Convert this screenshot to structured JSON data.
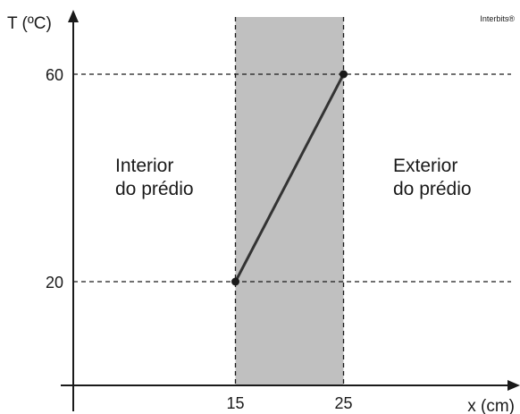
{
  "credit": "Interbits®",
  "chart_data": {
    "type": "line",
    "xlabel": "x (cm)",
    "ylabel": "T (ºC)",
    "x_ticks": [
      "15",
      "25"
    ],
    "y_ticks": [
      "20",
      "60"
    ],
    "xlim": [
      0,
      40
    ],
    "ylim": [
      0,
      70
    ],
    "shaded_region": {
      "x_start": 15,
      "x_end": 25,
      "color": "#c0c0c0"
    },
    "series": [
      {
        "x": [
          15,
          25
        ],
        "y": [
          20,
          60
        ]
      }
    ],
    "annotations": [
      {
        "lines": [
          "Interior",
          "do prédio"
        ]
      },
      {
        "lines": [
          "Exterior",
          "do prédio"
        ]
      }
    ],
    "grid": "dashed guides at x = 15, 25 and y = 20, 60"
  }
}
